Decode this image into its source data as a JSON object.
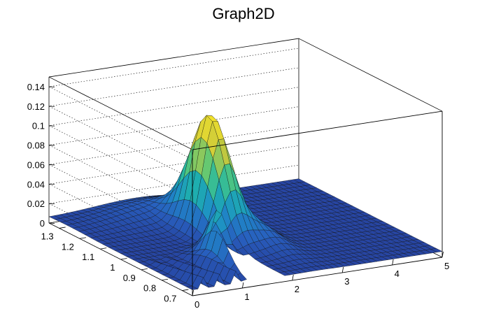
{
  "chart_data": {
    "type": "surface",
    "title": "Graph2D",
    "xlabel": "",
    "ylabel": "",
    "zlabel": "",
    "x_ticks": [
      "0",
      "1",
      "2",
      "3",
      "4",
      "5"
    ],
    "y_ticks": [
      "0.7",
      "0.8",
      "0.9",
      "1",
      "1.1",
      "1.2",
      "1.3"
    ],
    "z_ticks": [
      "0",
      "0.02",
      "0.04",
      "0.06",
      "0.08",
      "0.1",
      "0.12",
      "0.14"
    ],
    "xlim": [
      0,
      5
    ],
    "ylim": [
      0.65,
      1.35
    ],
    "zlim": [
      0,
      0.15
    ],
    "grid": true,
    "palette": "blue-green-yellow",
    "peaks": [
      {
        "x": 2.0,
        "y": 1.05,
        "z": 0.131
      },
      {
        "x": 1.25,
        "y": 0.8,
        "z": 0.07
      }
    ]
  }
}
